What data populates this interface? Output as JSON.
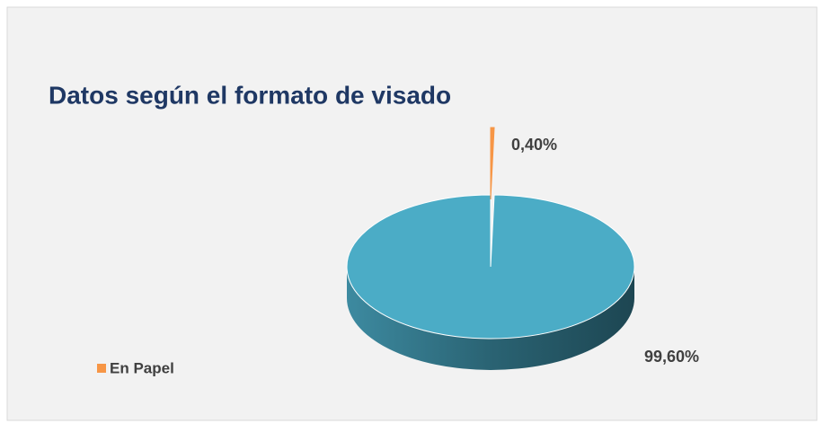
{
  "chart_data": {
    "type": "pie3d",
    "title": "Datos según el formato de visado",
    "categories": [
      null,
      "En Papel"
    ],
    "values": [
      99.6,
      0.4
    ],
    "value_labels": [
      "99,60%",
      "0,40%"
    ],
    "colors": [
      "#4bacc6",
      "#f79646"
    ],
    "legend": "left"
  }
}
